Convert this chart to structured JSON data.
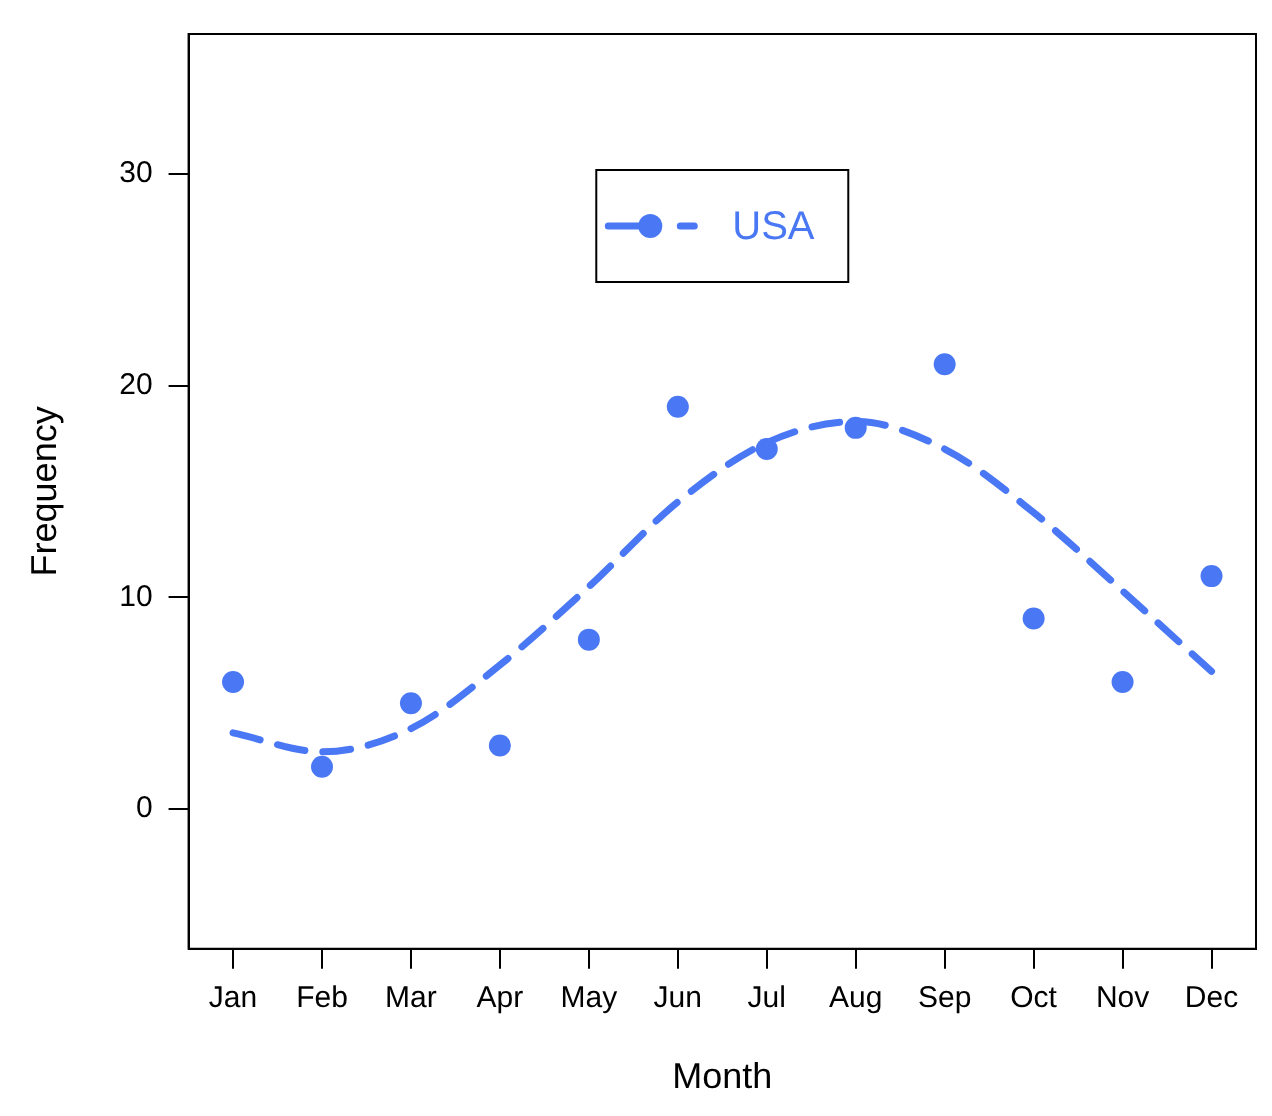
{
  "chart_data": {
    "type": "scatter",
    "xlabel": "Month",
    "ylabel": "Frequency",
    "categories": [
      "Jan",
      "Feb",
      "Mar",
      "Apr",
      "May",
      "Jun",
      "Jul",
      "Aug",
      "Sep",
      "Oct",
      "Nov",
      "Dec"
    ],
    "series": [
      {
        "name": "USA",
        "color": "#4a78f5",
        "marker": "circle",
        "values": [
          6,
          2,
          5,
          3,
          8,
          19,
          17,
          18,
          21,
          9,
          6,
          11
        ]
      },
      {
        "type": "line",
        "color": "#4a78f5",
        "line_style": "dashed",
        "marker": "none",
        "values": [
          3.6,
          2.7,
          3.8,
          6.8,
          10.5,
          14.5,
          17.3,
          18.3,
          17,
          14,
          10.3,
          6.5
        ]
      }
    ],
    "ylim": [
      -6.6,
      36.6
    ],
    "yticks": [
      0,
      10,
      20,
      30
    ],
    "grid": false,
    "legend": "top"
  }
}
